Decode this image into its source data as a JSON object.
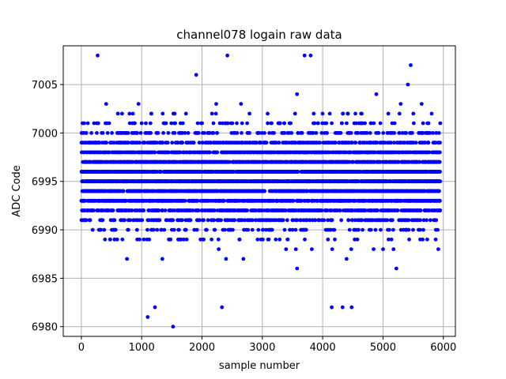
{
  "chart_data": {
    "type": "scatter",
    "title": "channel078 logain raw data",
    "xlabel": "sample number",
    "ylabel": "ADC Code",
    "xlim": [
      -300,
      6200
    ],
    "ylim": [
      6979,
      7009
    ],
    "xticks": [
      0,
      1000,
      2000,
      3000,
      4000,
      5000,
      6000
    ],
    "yticks": [
      6980,
      6985,
      6990,
      6995,
      7000,
      7005
    ],
    "xtick_labels": [
      "0",
      "1000",
      "2000",
      "3000",
      "4000",
      "5000",
      "6000"
    ],
    "ytick_labels": [
      "6980",
      "6985",
      "6990",
      "6995",
      "7000",
      "7005"
    ],
    "grid": true,
    "marker_color": "#0000ff",
    "n_samples": 5950,
    "value_distribution": {
      "mean": 6995.3,
      "std": 2.5,
      "min": 6980,
      "max": 7008
    },
    "notable_points": [
      {
        "x": 1100,
        "y": 6981
      },
      {
        "x": 1520,
        "y": 6980
      },
      {
        "x": 1220,
        "y": 6982
      },
      {
        "x": 2330,
        "y": 6982
      },
      {
        "x": 4150,
        "y": 6982
      },
      {
        "x": 4330,
        "y": 6982
      },
      {
        "x": 4480,
        "y": 6982
      },
      {
        "x": 270,
        "y": 7008
      },
      {
        "x": 2420,
        "y": 7008
      },
      {
        "x": 3700,
        "y": 7008
      },
      {
        "x": 3800,
        "y": 7008
      },
      {
        "x": 5460,
        "y": 7007
      }
    ]
  }
}
